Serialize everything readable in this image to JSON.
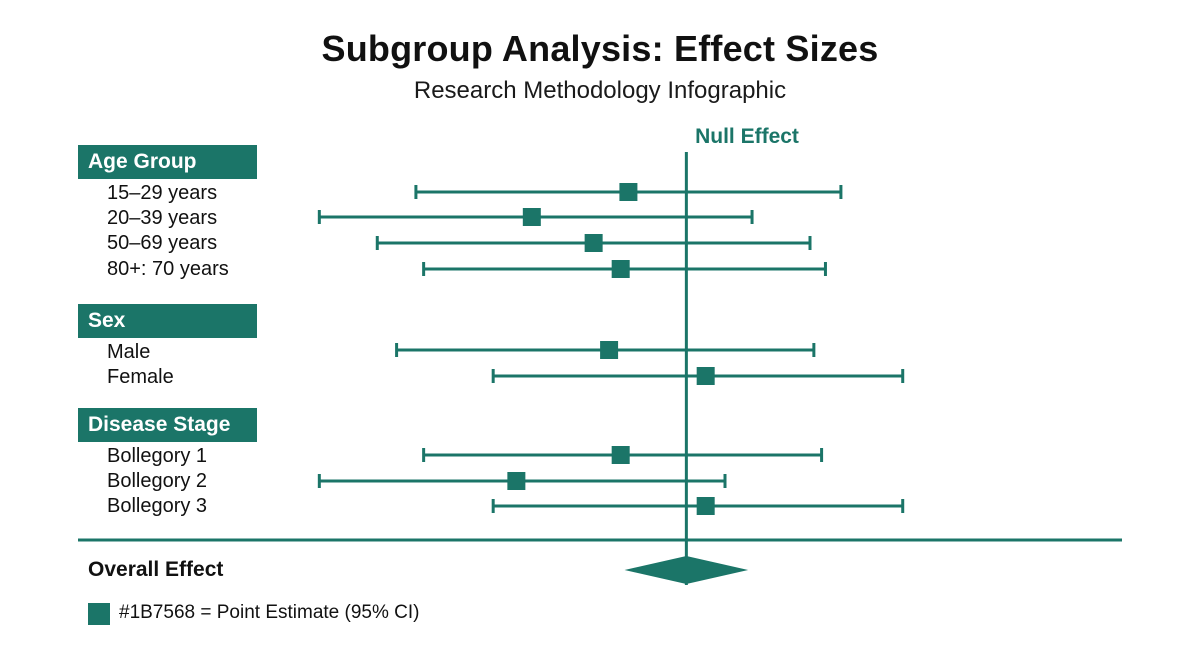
{
  "chart_data": {
    "type": "forest",
    "title": "Subgroup Analysis: Effect Sizes",
    "subtitle": "Research Methodology Infographic",
    "null_label": "Null Effect",
    "null_value": 0,
    "x_range": [
      -1.0,
      1.2
    ],
    "color": "#1B7568",
    "groups": [
      {
        "name": "Age Group",
        "rows": [
          {
            "label": "15–29 years",
            "estimate": -0.15,
            "lower": -0.7,
            "upper": 0.4
          },
          {
            "label": "20–39 years",
            "estimate": -0.4,
            "lower": -0.95,
            "upper": 0.17
          },
          {
            "label": "50–69 years",
            "estimate": -0.24,
            "lower": -0.8,
            "upper": 0.32
          },
          {
            "label": "80+: 70 years",
            "estimate": -0.17,
            "lower": -0.68,
            "upper": 0.36
          }
        ]
      },
      {
        "name": "Sex",
        "rows": [
          {
            "label": "Male",
            "estimate": -0.2,
            "lower": -0.75,
            "upper": 0.33
          },
          {
            "label": "Female",
            "estimate": 0.05,
            "lower": -0.5,
            "upper": 0.56
          }
        ]
      },
      {
        "name": "Disease Stage",
        "rows": [
          {
            "label": "Bollegory 1",
            "estimate": -0.17,
            "lower": -0.68,
            "upper": 0.35
          },
          {
            "label": "Bollegory 2",
            "estimate": -0.44,
            "lower": -0.95,
            "upper": 0.1
          },
          {
            "label": "Bollegory 3",
            "estimate": 0.05,
            "lower": -0.5,
            "upper": 0.56
          }
        ]
      }
    ],
    "overall": {
      "label": "Overall Effect",
      "estimate": 0.0,
      "lower": -0.16,
      "upper": 0.16
    },
    "legend": "#1B7568 = Point Estimate (95% CI)"
  }
}
